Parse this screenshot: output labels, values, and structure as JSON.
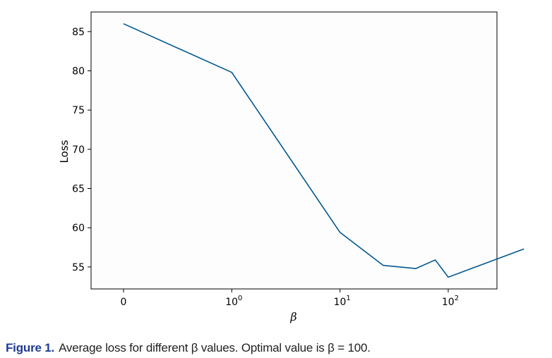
{
  "chart_data": {
    "type": "line",
    "x_scale": "symlog",
    "xlabel": "β",
    "ylabel": "Loss",
    "ylim": [
      52.2,
      87.5
    ],
    "xlim": [
      -0.3,
      3.45
    ],
    "xticks": [
      {
        "pos": 0,
        "base": "0",
        "exp": ""
      },
      {
        "pos": 1,
        "base": "10",
        "exp": "0"
      },
      {
        "pos": 2,
        "base": "10",
        "exp": "1"
      },
      {
        "pos": 3,
        "base": "10",
        "exp": "2"
      }
    ],
    "yticks": [
      55,
      60,
      65,
      70,
      75,
      80,
      85
    ],
    "grid": false,
    "line_color": "#00578f",
    "series": [
      {
        "x_pos": [
          0,
          1,
          2,
          2.4,
          2.7,
          2.88,
          3,
          3.7
        ],
        "values": [
          86.0,
          79.8,
          59.4,
          55.2,
          54.8,
          55.9,
          53.7,
          57.3
        ]
      }
    ]
  },
  "caption": {
    "label": "Figure 1.",
    "text": "Average loss for different β values. Optimal value is β = 100."
  }
}
